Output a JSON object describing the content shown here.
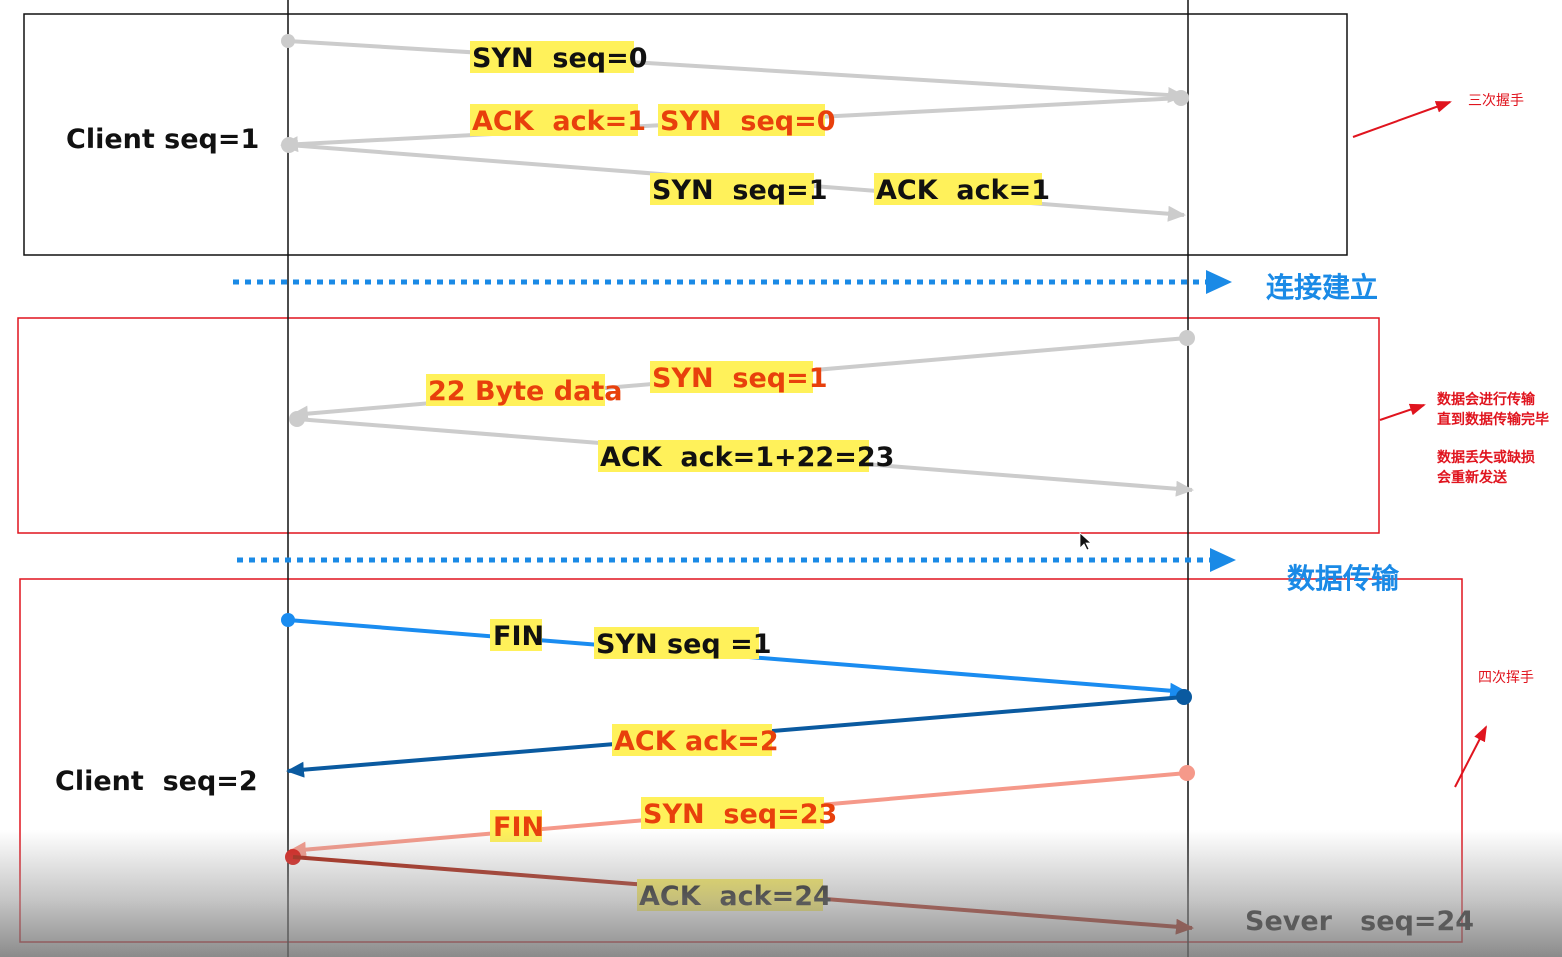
{
  "handshake": {
    "client_label": "Client seq=1",
    "msg1": "SYN  seq=0",
    "msg2a": "ACK  ack=1",
    "msg2b": "SYN  seq=0",
    "msg3a": "SYN  seq=1",
    "msg3b": "ACK  ack=1",
    "note": "三次握手"
  },
  "established_label": "连接建立",
  "transfer": {
    "msg1a": "22 Byte data",
    "msg1b": "SYN  seq=1",
    "msg2": "ACK  ack=1+22=23",
    "note_line1": "数据会进行传输",
    "note_line2": "直到数据传输完毕",
    "note_line3": "数据丢失或缺损",
    "note_line4": "会重新发送"
  },
  "transfer_label": "数据传输",
  "teardown": {
    "msg1a": "FIN",
    "msg1b": "SYN seq =1",
    "msg2": "ACK ack=2",
    "msg3a": "FIN",
    "msg3b": "SYN  seq=23",
    "msg4": "ACK  ack=24",
    "client_label": "Client  seq=2",
    "server_label": "Sever   seq=24",
    "note": "四次挥手"
  },
  "colors": {
    "grey_arrow": "#cccccc",
    "blue": "#1a8cf0",
    "dark_blue": "#0a5aa0",
    "salmon": "#f5998a",
    "dark_red": "#a82210",
    "highlight": "#fff15a",
    "orange_text": "#e8400c",
    "dotted_blue": "#1a8ae6",
    "red_note": "#e0141e"
  }
}
